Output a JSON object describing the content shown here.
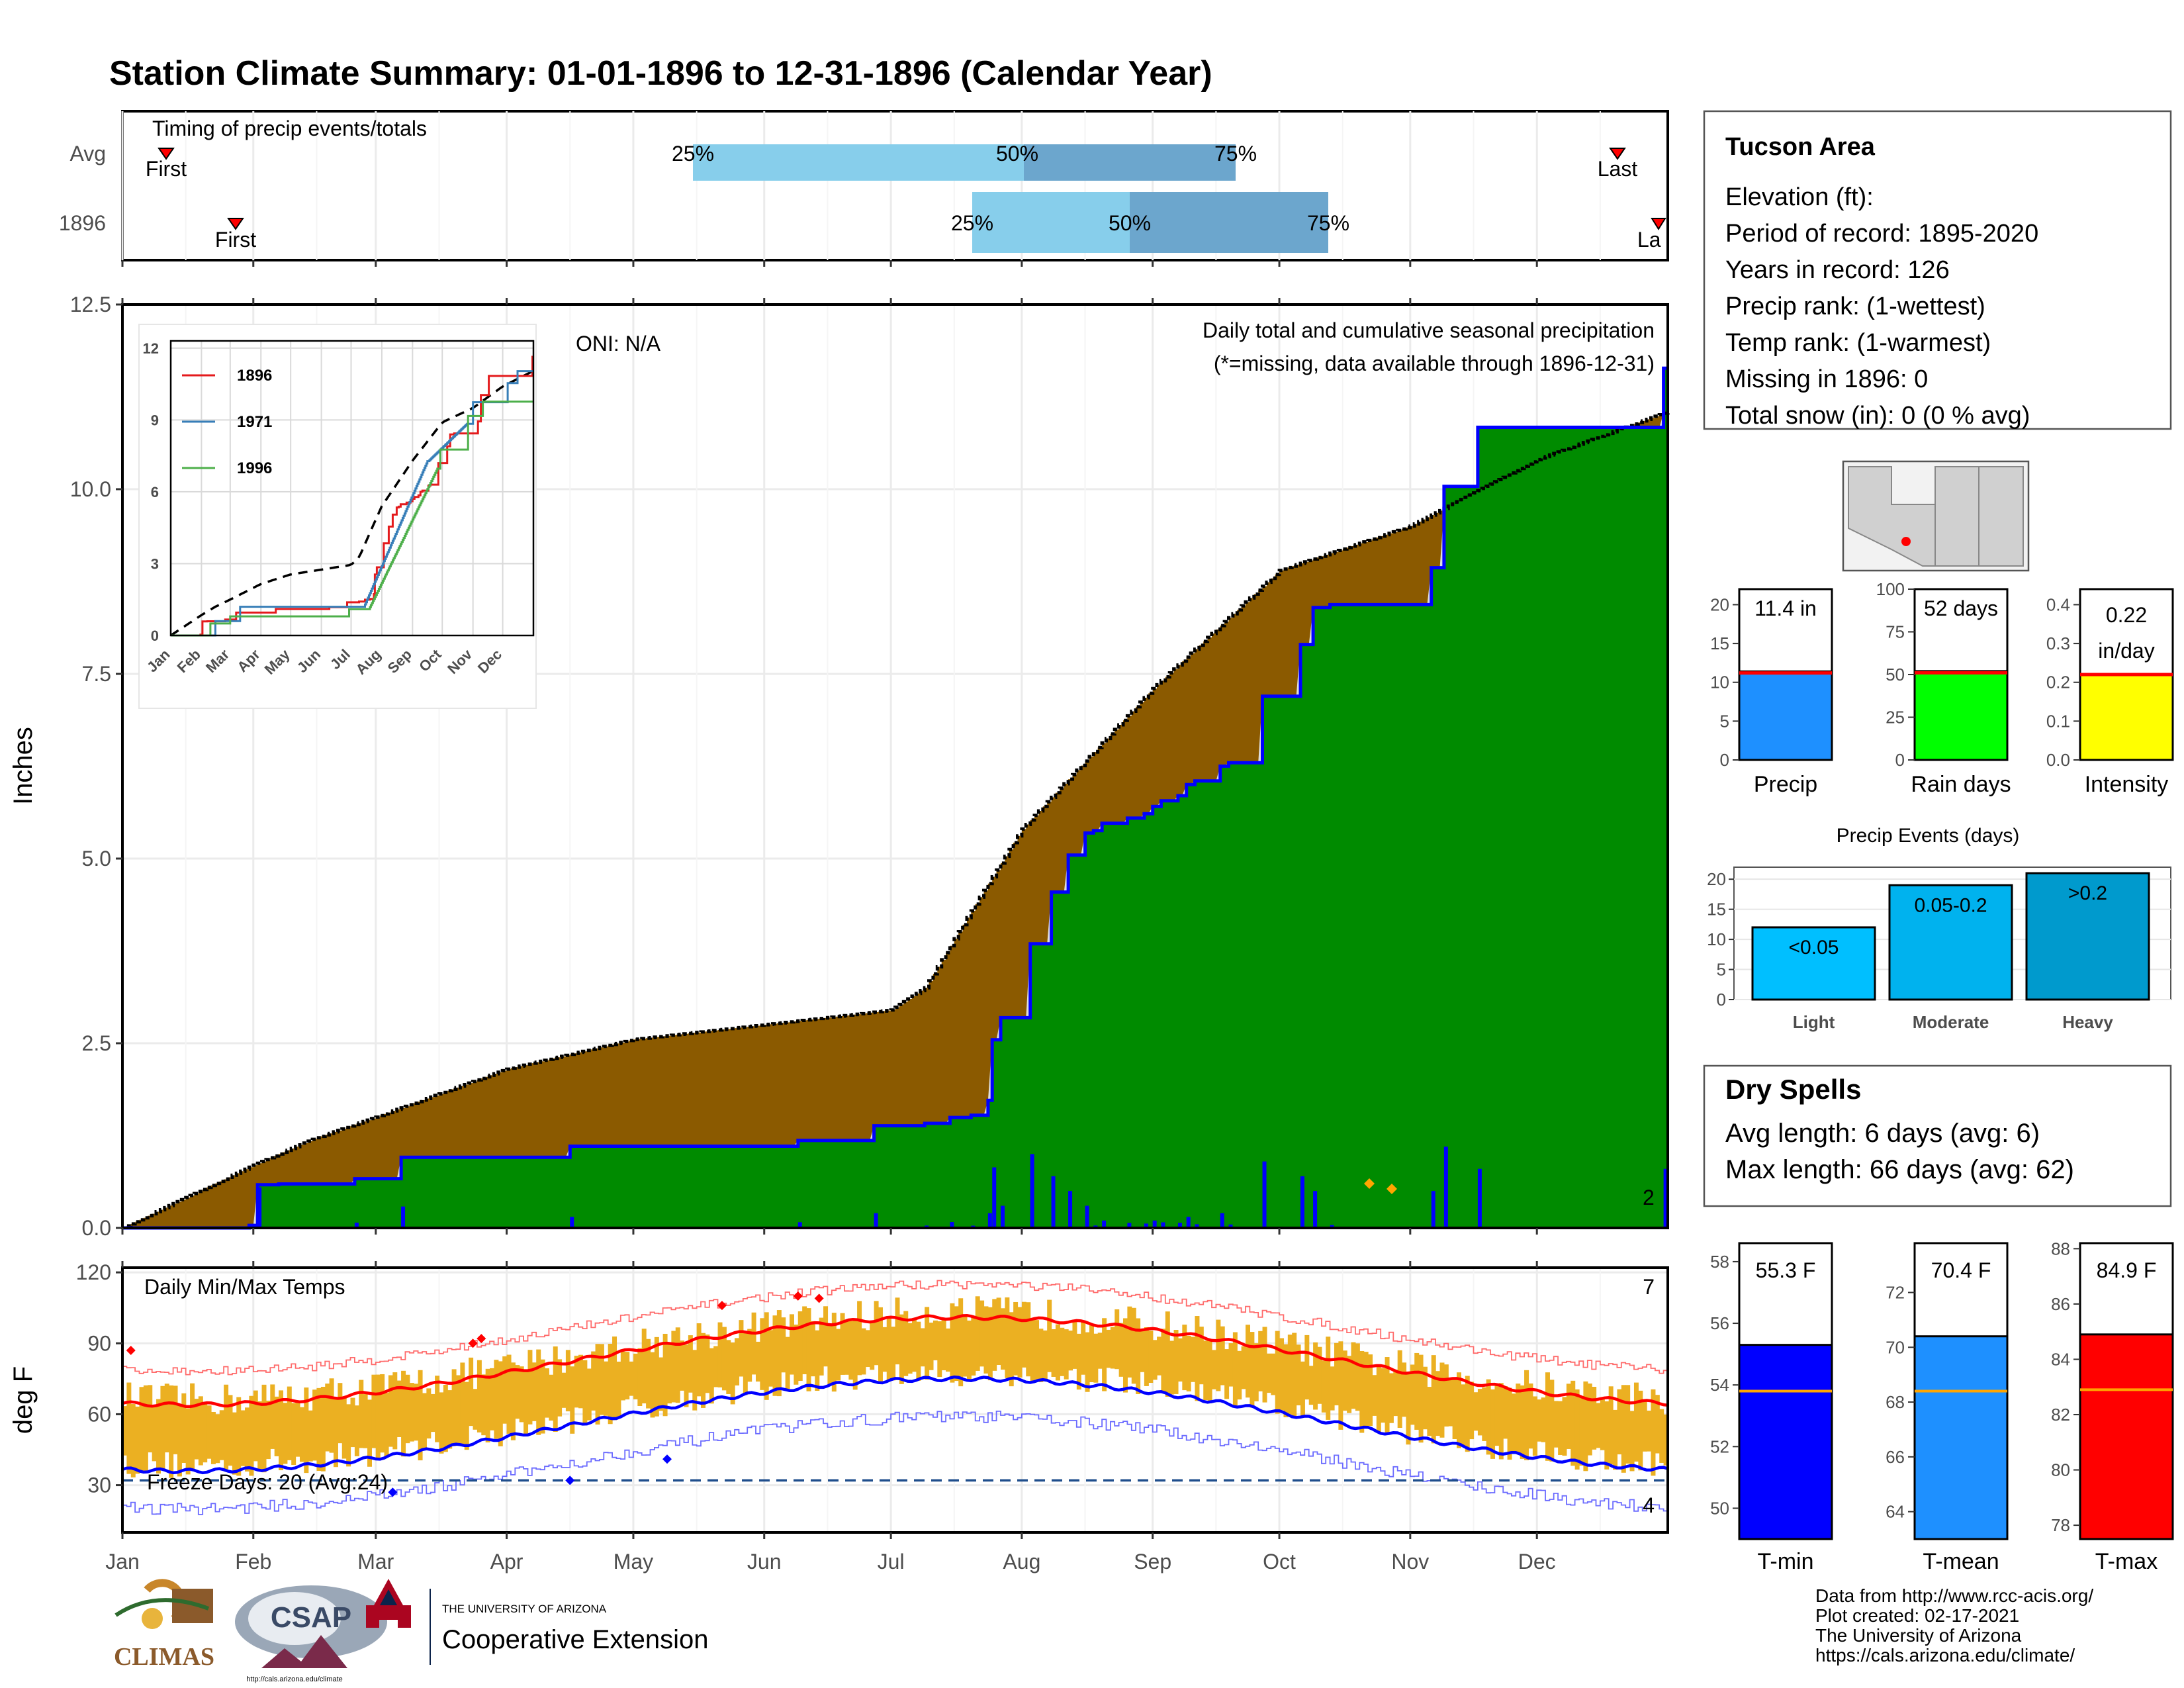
{
  "title": "Station Climate Summary: 01-01-1896 to 12-31-1896 (Calendar Year)",
  "timing": {
    "title": "Timing of precip events/totals",
    "rows": [
      "Avg",
      "1896"
    ],
    "first_label": "First",
    "last_label": "Last",
    "last_label_cut": "La",
    "p25": "25%",
    "p50": "50%",
    "p75": "75%"
  },
  "months": [
    "Jan",
    "Feb",
    "Mar",
    "Apr",
    "May",
    "Jun",
    "Jul",
    "Aug",
    "Sep",
    "Oct",
    "Nov",
    "Dec"
  ],
  "main": {
    "ylabel": "Inches",
    "oni": "ONI: N/A",
    "note1": "Daily total and cumulative seasonal precipitation",
    "note2": "(*=missing, data available through 1896-12-31)",
    "right_count": "2",
    "yticks": [
      "0.0",
      "2.5",
      "5.0",
      "7.5",
      "10.0",
      "12.5"
    ]
  },
  "inset": {
    "yticks": [
      "0",
      "3",
      "6",
      "9",
      "12"
    ],
    "months": [
      "Jan",
      "Feb",
      "Mar",
      "Apr",
      "May",
      "Jun",
      "Jul",
      "Aug",
      "Sep",
      "Oct",
      "Nov",
      "Dec"
    ],
    "legend": [
      {
        "name": "1896",
        "color": "#e41a1c"
      },
      {
        "name": "1971",
        "color": "#377eb8"
      },
      {
        "name": "1996",
        "color": "#4daf4a"
      }
    ]
  },
  "temps": {
    "title": "Daily Min/Max Temps",
    "ylabel": "deg F",
    "freeze": "Freeze Days: 20 (Avg:24)",
    "count_hi": "7",
    "count_lo": "4",
    "yticks": [
      "30",
      "60",
      "90",
      "120"
    ]
  },
  "station": {
    "name": "Tucson Area",
    "lines": [
      "Elevation (ft):",
      "Period of record: 1895-2020",
      "Years in record: 126",
      "Precip rank:  (1-wettest)",
      "Temp rank:  (1-warmest)",
      "Missing in 1896: 0",
      "Total snow (in): 0 (0 % avg)"
    ]
  },
  "minibars": [
    {
      "label": "Precip",
      "value_text": "11.4 in",
      "value": 11.4,
      "avg": 11.2,
      "ymax": 22,
      "ticks": [
        "0",
        "5",
        "10",
        "15",
        "20"
      ],
      "tickvals": [
        0,
        5,
        10,
        15,
        20
      ],
      "color": "#1e90ff"
    },
    {
      "label": "Rain days",
      "value_text": "52 days",
      "value": 52,
      "avg": 51,
      "ymax": 100,
      "ticks": [
        "0",
        "25",
        "50",
        "75",
        "100"
      ],
      "tickvals": [
        0,
        25,
        50,
        75,
        100
      ],
      "color": "#00ff00"
    },
    {
      "label": "Intensity",
      "value_text": "0.22 in/day",
      "value_line1": "0.22",
      "value_line2": "in/day",
      "value": 0.22,
      "avg": 0.22,
      "ymax": 0.44,
      "ticks": [
        "0.0",
        "0.1",
        "0.2",
        "0.3",
        "0.4"
      ],
      "tickvals": [
        0,
        0.1,
        0.2,
        0.3,
        0.4
      ],
      "color": "#ffff00"
    }
  ],
  "events": {
    "title": "Precip Events (days)",
    "ticks": [
      "0",
      "5",
      "10",
      "15",
      "20"
    ],
    "bars": [
      {
        "cat": "Light",
        "label": "<0.05",
        "value": 12,
        "color": "#00bfff"
      },
      {
        "cat": "Moderate",
        "label": "0.05-0.2",
        "value": 19,
        "color": "#00b2ee"
      },
      {
        "cat": "Heavy",
        "label": ">0.2",
        "value": 21,
        "color": "#009acd"
      }
    ]
  },
  "dry": {
    "title": "Dry Spells",
    "avg": "Avg length: 6 days (avg: 6)",
    "max": "Max length: 66 days (avg: 62)"
  },
  "tbars": [
    {
      "label": "T-min",
      "value_text": "55.3 F",
      "value": 55.3,
      "avg": 53.8,
      "ymin": 49,
      "ymax": 58.6,
      "ticks": [
        "50",
        "52",
        "54",
        "56",
        "58"
      ],
      "tickvals": [
        50,
        52,
        54,
        56,
        58
      ],
      "color": "#0000ff"
    },
    {
      "label": "T-mean",
      "value_text": "70.4 F",
      "value": 70.4,
      "avg": 68.4,
      "ymin": 63,
      "ymax": 73.8,
      "ticks": [
        "64",
        "66",
        "68",
        "70",
        "72"
      ],
      "tickvals": [
        64,
        66,
        68,
        70,
        72
      ],
      "color": "#1e90ff"
    },
    {
      "label": "T-max",
      "value_text": "84.9 F",
      "value": 84.9,
      "avg": 82.9,
      "ymin": 77.5,
      "ymax": 88.2,
      "ticks": [
        "78",
        "80",
        "82",
        "84",
        "86",
        "88"
      ],
      "tickvals": [
        78,
        80,
        82,
        84,
        86,
        88
      ],
      "color": "#ff0000"
    }
  ],
  "footer": {
    "lines": [
      "Data from http://www.rcc-acis.org/",
      "Plot created: 02-17-2021",
      "The University of Arizona",
      "https://cals.arizona.edu/climate/"
    ],
    "climas": "CLIMAS",
    "csap": "CSAP",
    "csap_url": "http://cals.arizona.edu/climate",
    "ua_small": "THE UNIVERSITY OF ARIZONA",
    "ua_big": "Cooperative Extension"
  },
  "chart_data": [
    {
      "type": "area",
      "title": "Daily total and cumulative seasonal precipitation",
      "ylabel": "Inches",
      "ylim": [
        0,
        12.5
      ],
      "x": [
        "Jan",
        "Feb",
        "Mar",
        "Apr",
        "May",
        "Jun",
        "Jul",
        "Aug",
        "Sep",
        "Oct",
        "Nov",
        "Dec"
      ],
      "series": [
        {
          "name": "average cumulative",
          "values": [
            0.0,
            0.85,
            1.5,
            2.15,
            2.55,
            2.75,
            2.95,
            5.4,
            7.3,
            8.9,
            9.5,
            10.4
          ]
        },
        {
          "name": "1896",
          "values": [
            0.0,
            0.55,
            0.85,
            0.9,
            1.0,
            1.0,
            1.2,
            5.3,
            7.2,
            8.9,
            9.7,
            11.0
          ]
        }
      ],
      "total": 11.4
    },
    {
      "type": "line",
      "title": "Daily Min/Max Temps",
      "ylabel": "deg F",
      "ylim": [
        10,
        122
      ],
      "x": [
        "Jan",
        "Feb",
        "Mar",
        "Apr",
        "May",
        "Jun",
        "Jul",
        "Aug",
        "Sep",
        "Oct",
        "Nov",
        "Dec"
      ],
      "series": [
        {
          "name": "avg max",
          "values": [
            64,
            67,
            72,
            78,
            87,
            96,
            101,
            99,
            96,
            87,
            75,
            66
          ]
        },
        {
          "name": "avg min",
          "values": [
            36,
            38,
            42,
            47,
            55,
            65,
            74,
            73,
            67,
            55,
            44,
            37
          ]
        }
      ],
      "freeze_days": 20,
      "freeze_days_avg": 24
    },
    {
      "type": "bar",
      "title": "Precip Events (days)",
      "categories": [
        "Light",
        "Moderate",
        "Heavy"
      ],
      "values": [
        12,
        19,
        21
      ]
    }
  ]
}
